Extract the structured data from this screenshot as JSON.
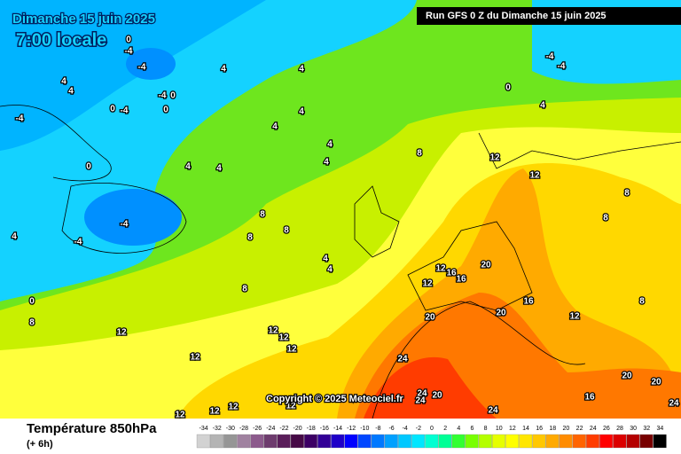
{
  "header": {
    "date": "Dimanche 15 juin 2025",
    "time": "7:00 locale",
    "run": "Run GFS 0 Z du Dimanche 15 juin 2025",
    "copyright": "Copyright © 2025 Meteociel.fr"
  },
  "footer": {
    "title": "Température 850hPa",
    "lead": "(+ 6h)"
  },
  "scale": {
    "values": [
      -34,
      -32,
      -30,
      -28,
      -26,
      -24,
      -22,
      -20,
      -18,
      -16,
      -14,
      -12,
      -10,
      -8,
      -6,
      -4,
      -2,
      0,
      2,
      4,
      6,
      8,
      10,
      12,
      14,
      16,
      18,
      20,
      22,
      24,
      26,
      28,
      30,
      32,
      34
    ],
    "colors": [
      "#d2d2d2",
      "#b4b4b4",
      "#969696",
      "#a082a0",
      "#8c5a8c",
      "#6e3c6e",
      "#5a1e5a",
      "#460a46",
      "#3c0064",
      "#320096",
      "#1e00c8",
      "#0000ff",
      "#0046ff",
      "#0078ff",
      "#00a0ff",
      "#00c8ff",
      "#00e6ff",
      "#00ffd2",
      "#00ff96",
      "#32ff32",
      "#78ff00",
      "#b4ff00",
      "#e6ff00",
      "#ffff00",
      "#ffe600",
      "#ffc800",
      "#ffaa00",
      "#ff8c00",
      "#ff6400",
      "#ff3c00",
      "#ff0000",
      "#dc0000",
      "#b40000",
      "#780000",
      "#000000"
    ]
  },
  "map_labels": [
    "0",
    "-4",
    "-4",
    "4",
    "4",
    "-4",
    "0",
    "-4",
    "-4",
    "0",
    "0",
    "0",
    "4",
    "4",
    "4",
    "4",
    "4",
    "4",
    "4",
    "4",
    "-4",
    "-4",
    "4",
    "8",
    "8",
    "8",
    "4",
    "4",
    "8",
    "0",
    "8",
    "12",
    "12",
    "12",
    "12",
    "12",
    "8",
    "12",
    "12",
    "8",
    "8",
    "12",
    "12",
    "16",
    "16",
    "20",
    "16",
    "20",
    "20",
    "12",
    "8",
    "24",
    "24",
    "20",
    "24",
    "24",
    "16",
    "20",
    "20",
    "24",
    "-4",
    "-4",
    "0",
    "4",
    "12",
    "12",
    "12",
    "12"
  ]
}
